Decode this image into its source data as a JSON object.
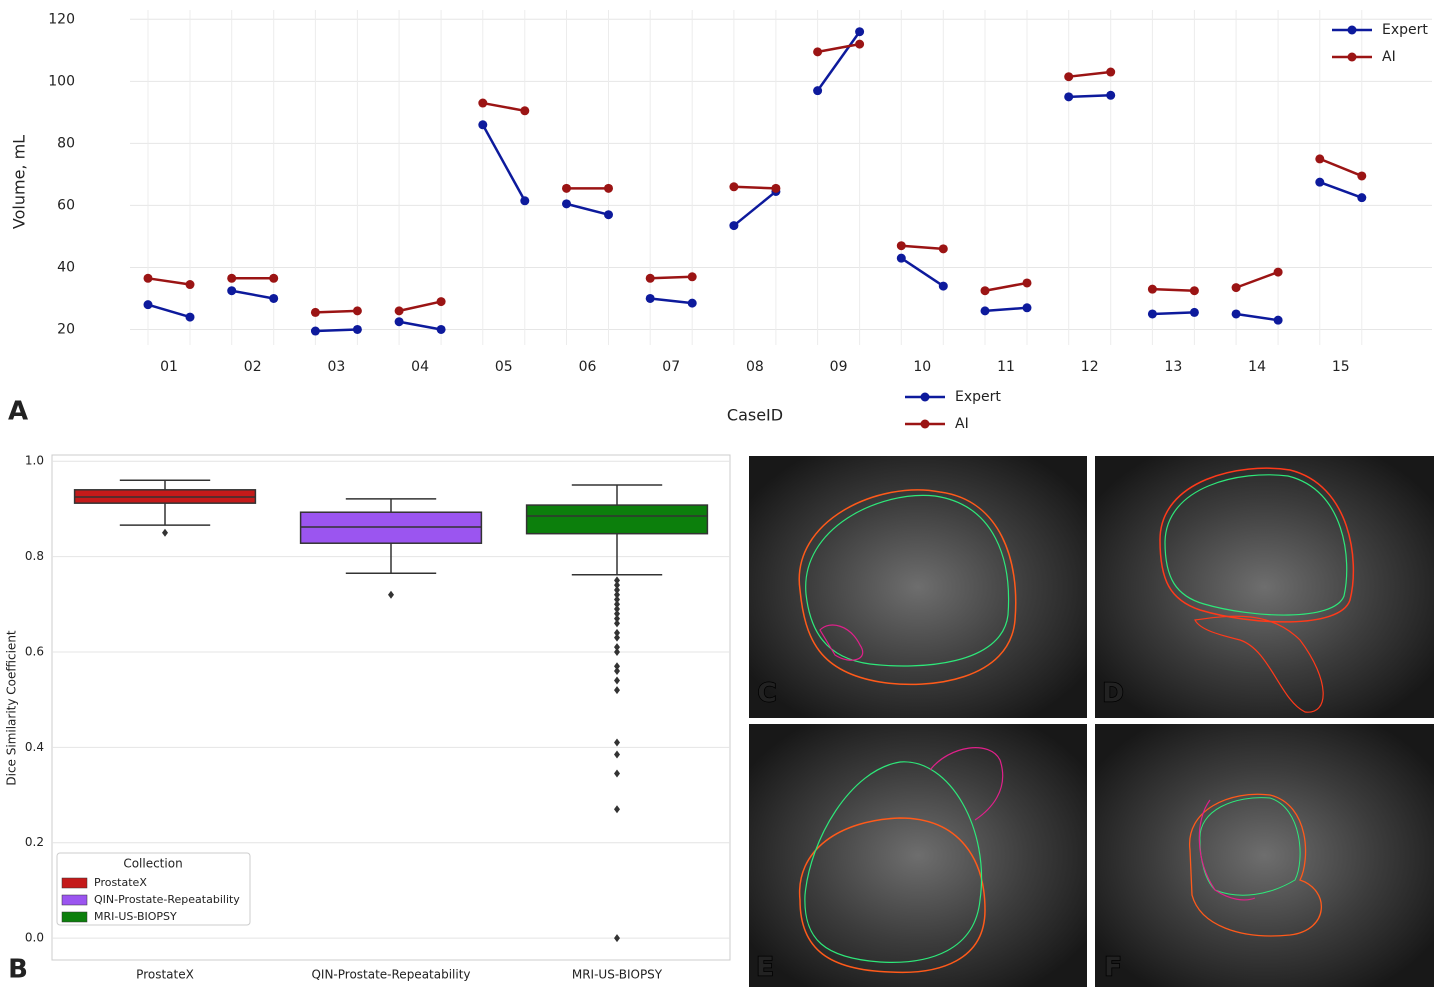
{
  "chart_data": [
    {
      "type": "paired-line",
      "x_label": "CaseID",
      "y_label": "Volume, mL",
      "categories": [
        "01",
        "02",
        "03",
        "04",
        "05",
        "06",
        "07",
        "08",
        "09",
        "10",
        "11",
        "12",
        "13",
        "14",
        "15"
      ],
      "series": [
        {
          "name": "Expert",
          "color": "#0d1a9c",
          "values": [
            [
              28,
              24
            ],
            [
              32.5,
              30
            ],
            [
              19.5,
              20
            ],
            [
              22.5,
              20
            ],
            [
              86,
              61.5
            ],
            [
              60.5,
              57
            ],
            [
              30,
              28.5
            ],
            [
              53.5,
              64.5
            ],
            [
              97,
              116
            ],
            [
              43,
              34
            ],
            [
              26,
              27
            ],
            [
              95,
              95.5
            ],
            [
              25,
              25.5
            ],
            [
              25,
              23
            ],
            [
              67.5,
              62.5
            ]
          ]
        },
        {
          "name": "AI",
          "color": "#9b1414",
          "values": [
            [
              36.5,
              34.5
            ],
            [
              36.5,
              36.5
            ],
            [
              25.5,
              26
            ],
            [
              26,
              29
            ],
            [
              93,
              90.5
            ],
            [
              65.5,
              65.5
            ],
            [
              36.5,
              37
            ],
            [
              66,
              65.5
            ],
            [
              109.5,
              112
            ],
            [
              47,
              46
            ],
            [
              32.5,
              35
            ],
            [
              101.5,
              103
            ],
            [
              33,
              32.5
            ],
            [
              33.5,
              38.5
            ],
            [
              75,
              69.5
            ]
          ]
        }
      ],
      "ylim": [
        15,
        123
      ],
      "yticks": [
        20,
        40,
        60,
        80,
        100,
        120
      ],
      "grid": true,
      "legend": "upper right"
    },
    {
      "type": "box",
      "y_label": "Dice Similarity Coefficient",
      "legend_title": "Collection",
      "categories": [
        "ProstateX",
        "QIN-Prostate-Repeatability",
        "MRI-US-BIOPSY"
      ],
      "colors": [
        "#c41a1a",
        "#9b55f0",
        "#0c7f0c"
      ],
      "boxes": [
        {
          "low": 0.866,
          "q1": 0.912,
          "median": 0.925,
          "q3": 0.94,
          "high": 0.96,
          "outliers": [
            0.85
          ]
        },
        {
          "low": 0.765,
          "q1": 0.828,
          "median": 0.862,
          "q3": 0.893,
          "high": 0.921,
          "outliers": [
            0.72
          ]
        },
        {
          "low": 0.762,
          "q1": 0.848,
          "median": 0.885,
          "q3": 0.908,
          "high": 0.95,
          "outliers": [
            0.75,
            0.74,
            0.73,
            0.72,
            0.71,
            0.7,
            0.69,
            0.68,
            0.67,
            0.66,
            0.64,
            0.63,
            0.61,
            0.6,
            0.57,
            0.56,
            0.54,
            0.52,
            0.41,
            0.385,
            0.345,
            0.27,
            0
          ]
        }
      ],
      "ylim": [
        -0.046,
        1.013
      ],
      "yticks": [
        {
          "value": 0,
          "label": "0.0"
        },
        0.2,
        0.4,
        0.6,
        0.8,
        {
          "value": 1,
          "label": "1.0"
        }
      ],
      "grid": true,
      "legend": "lower left"
    }
  ],
  "panel_labels": [
    "A",
    "B",
    "C",
    "D",
    "E",
    "F"
  ]
}
